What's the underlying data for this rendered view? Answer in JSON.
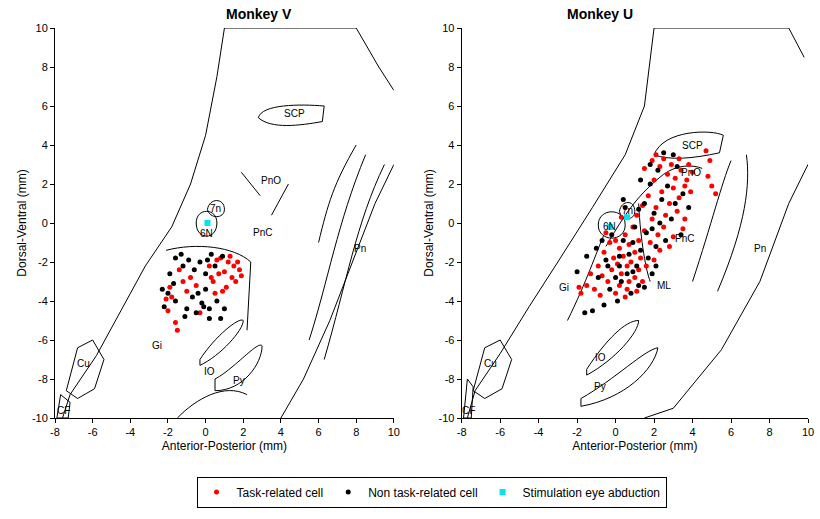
{
  "chart_data": [
    {
      "type": "scatter",
      "title": "Monkey V",
      "x_label": "Anterior-Posterior (mm)",
      "y_label": "Dorsal-Ventral (mm)",
      "xlim": [
        -8,
        10
      ],
      "ylim": [
        -10,
        10
      ],
      "xticks": [
        -8,
        -6,
        -4,
        -2,
        0,
        2,
        4,
        6,
        8,
        10
      ],
      "yticks": [
        -10,
        -8,
        -6,
        -4,
        -2,
        0,
        2,
        4,
        6,
        8,
        10
      ],
      "grid": false,
      "legend": "bottom",
      "series": [
        {
          "name": "Task-related cell",
          "color": "#ff0000",
          "marker": "circle",
          "x": [
            -2,
            -1.8,
            -1.6,
            -1.5,
            -1.2,
            -1.0,
            -0.8,
            -0.5,
            -1.9,
            -2.1,
            0.2,
            0.4,
            0.5,
            0.7,
            0.8,
            1.0,
            1.1,
            1.2,
            1.4,
            1.5,
            1.6,
            1.8,
            1.9,
            0.9,
            0.3,
            1.3,
            -0.3,
            -1.4,
            1.7,
            0.6
          ],
          "y": [
            -4.5,
            -3.8,
            -5.1,
            -5.5,
            -3.0,
            -3.5,
            -2.8,
            -3.2,
            -3.3,
            -3.9,
            -2.2,
            -3.0,
            -3.6,
            -2.6,
            -1.8,
            -2.5,
            -3.3,
            -2.0,
            -2.8,
            -2.2,
            -3.0,
            -2.4,
            -2.7,
            -3.5,
            -2.8,
            -1.7,
            -4.6,
            -2.4,
            -2.0,
            -1.9
          ]
        },
        {
          "name": "Non task-related cell",
          "color": "#000000",
          "marker": "circle",
          "x": [
            -2.3,
            -2.2,
            -2.0,
            -1.7,
            -1.6,
            -1.3,
            -1.2,
            -1.0,
            -0.9,
            -0.7,
            -0.6,
            -0.4,
            -0.2,
            -0.1,
            0.0,
            0.0,
            0.2,
            -0.5,
            0.3,
            0.5,
            0.6,
            0.8,
            1.0,
            0.2,
            0.9,
            -1.6,
            -1.9,
            -1.1,
            -0.3,
            0.1
          ],
          "y": [
            -3.4,
            -4.3,
            -3.6,
            -3.1,
            -4.0,
            -1.6,
            -2.2,
            -4.4,
            -1.9,
            -3.8,
            -2.4,
            -3.6,
            -4.1,
            -4.3,
            -2.6,
            -3.4,
            -4.9,
            -4.6,
            -1.6,
            -2.2,
            -4.0,
            -4.9,
            -4.4,
            -4.4,
            -1.7,
            -1.8,
            -2.6,
            -4.8,
            -2.0,
            -1.9
          ]
        },
        {
          "name": "Stimulation eye abduction",
          "color": "#00e5ee",
          "marker": "square",
          "x": [
            0.1
          ],
          "y": [
            0.0
          ]
        }
      ],
      "annotations": [
        {
          "text": "SCP",
          "x": 4.7,
          "y": 5.6
        },
        {
          "text": "PnO",
          "x": 3.5,
          "y": 2.2
        },
        {
          "text": "7n",
          "x": 0.55,
          "y": 0.75
        },
        {
          "text": "6N",
          "x": 0.05,
          "y": -0.55
        },
        {
          "text": "PnC",
          "x": 3.0,
          "y": -0.5
        },
        {
          "text": "Pn",
          "x": 8.2,
          "y": -1.3
        },
        {
          "text": "Gi",
          "x": -2.6,
          "y": -6.3
        },
        {
          "text": "IO",
          "x": 0.2,
          "y": -7.6
        },
        {
          "text": "Py",
          "x": 1.8,
          "y": -8.1
        },
        {
          "text": "Cu",
          "x": -6.5,
          "y": -7.2
        },
        {
          "text": "CF",
          "x": -7.55,
          "y": -9.6
        }
      ]
    },
    {
      "type": "scatter",
      "title": "Monkey U",
      "x_label": "Anterior-Posterior (mm)",
      "y_label": "Dorsal-Ventral (mm)",
      "xlim": [
        -8,
        10
      ],
      "ylim": [
        -10,
        10
      ],
      "xticks": [
        -8,
        -6,
        -4,
        -2,
        0,
        2,
        4,
        6,
        8,
        10
      ],
      "yticks": [
        -10,
        -8,
        -6,
        -4,
        -2,
        0,
        2,
        4,
        6,
        8,
        10
      ],
      "grid": false,
      "series": [
        {
          "name": "Task-related cell",
          "color": "#ff0000",
          "marker": "circle",
          "x": [
            -1.9,
            -1.8,
            -1.3,
            -1.1,
            -0.9,
            -0.7,
            -0.6,
            -0.4,
            -0.3,
            -0.2,
            -0.1,
            0.0,
            0.0,
            0.1,
            0.2,
            0.2,
            0.3,
            0.4,
            0.5,
            0.5,
            0.6,
            0.7,
            0.7,
            0.8,
            0.9,
            1.0,
            1.0,
            1.1,
            1.2,
            1.2,
            1.3,
            1.4,
            1.4,
            1.5,
            1.6,
            1.7,
            1.8,
            1.9,
            2.0,
            2.0,
            2.1,
            2.2,
            2.3,
            2.4,
            2.5,
            2.5,
            2.6,
            2.7,
            2.8,
            2.9,
            3.0,
            3.0,
            3.1,
            3.2,
            3.3,
            3.3,
            3.4,
            3.5,
            3.6,
            3.7,
            3.8,
            3.9,
            4.7,
            4.8,
            4.9,
            5.2,
            5.0,
            1.5,
            1.9,
            0.6,
            -0.8,
            -1.5,
            -0.5,
            0.3,
            1.1,
            2.3,
            2.8,
            3.6,
            4.0,
            2.1
          ],
          "y": [
            -3.3,
            -3.6,
            -2.6,
            -3.4,
            -2.2,
            -2.7,
            -1.5,
            -3.0,
            -1.0,
            -2.4,
            -1.8,
            -3.6,
            -0.9,
            -2.1,
            -1.3,
            -3.2,
            -2.6,
            -1.7,
            -3.8,
            -0.6,
            -2.2,
            -1.1,
            -3.0,
            -2.0,
            -0.2,
            -1.5,
            -2.8,
            0.4,
            -0.9,
            -2.4,
            -1.8,
            0.9,
            -3.0,
            -0.4,
            -2.2,
            1.4,
            -1.0,
            0.2,
            -1.9,
            2.2,
            0.8,
            -0.6,
            2.9,
            1.6,
            -0.2,
            3.3,
            0.4,
            2.5,
            1.0,
            3.0,
            1.8,
            -0.7,
            2.3,
            0.6,
            3.3,
            1.3,
            2.7,
            -0.3,
            1.9,
            2.2,
            3.0,
            1.6,
            3.7,
            2.4,
            3.2,
            1.5,
            1.9,
            2.8,
            3.2,
            -3.4,
            -3.7,
            -3.2,
            -0.5,
            0.3,
            -3.5,
            -1.4,
            -1.2,
            0.2,
            2.6,
            3.5
          ]
        },
        {
          "name": "Non task-related cell",
          "color": "#000000",
          "marker": "circle",
          "x": [
            -2.0,
            -1.6,
            -1.5,
            -1.2,
            -1.0,
            -0.9,
            -0.6,
            -0.5,
            -0.3,
            -0.2,
            0.0,
            0.1,
            0.2,
            0.3,
            0.4,
            0.6,
            0.7,
            0.8,
            0.9,
            1.0,
            1.1,
            1.2,
            1.3,
            1.5,
            1.5,
            1.6,
            1.7,
            1.8,
            1.9,
            2.0,
            2.1,
            2.2,
            2.3,
            2.4,
            2.6,
            2.7,
            2.9,
            3.1,
            3.2,
            3.4,
            3.5,
            3.8,
            1.8,
            1.3,
            2.5,
            0.2,
            -0.4,
            0.9,
            1.9,
            2.1,
            1.2,
            -0.7,
            0.4,
            3.0,
            0.5
          ],
          "y": [
            -2.5,
            -4.6,
            -1.7,
            -4.5,
            -1.3,
            -2.8,
            -4.2,
            -1.9,
            -3.4,
            -0.6,
            -2.8,
            -4.0,
            -1.7,
            -3.0,
            -0.9,
            -2.6,
            -1.6,
            -3.6,
            -1.0,
            -0.2,
            -2.2,
            0.7,
            -1.4,
            -3.3,
            1.0,
            -0.5,
            -1.8,
            2.0,
            -0.3,
            0.5,
            -1.2,
            2.7,
            0.0,
            1.2,
            -0.9,
            1.9,
            0.2,
            1.0,
            2.9,
            -0.6,
            1.5,
            0.8,
            3.0,
            2.2,
            3.6,
            -2.2,
            -2.2,
            -2.5,
            -2.6,
            -2.2,
            -3.2,
            -0.9,
            1.2,
            3.5,
            0.8
          ]
        },
        {
          "name": "Stimulation eye abduction",
          "color": "#00e5ee",
          "marker": "square",
          "x": [
            -0.3,
            0.6
          ],
          "y": [
            -0.2,
            0.3
          ]
        }
      ],
      "annotations": [
        {
          "text": "SCP",
          "x": 4.0,
          "y": 4.0
        },
        {
          "text": "PnO",
          "x": 3.9,
          "y": 2.6
        },
        {
          "text": "7n",
          "x": 0.6,
          "y": 0.65
        },
        {
          "text": "6N",
          "x": -0.3,
          "y": -0.2
        },
        {
          "text": "PnC",
          "x": 3.6,
          "y": -0.8
        },
        {
          "text": "Pn",
          "x": 7.5,
          "y": -1.3
        },
        {
          "text": "ML",
          "x": 2.5,
          "y": -3.2
        },
        {
          "text": "Gi",
          "x": -2.7,
          "y": -3.3
        },
        {
          "text": "IO",
          "x": -0.8,
          "y": -6.9
        },
        {
          "text": "Py",
          "x": -0.8,
          "y": -8.4
        },
        {
          "text": "Cu",
          "x": -6.5,
          "y": -7.2
        },
        {
          "text": "CF",
          "x": -7.65,
          "y": -9.6
        }
      ]
    }
  ]
}
